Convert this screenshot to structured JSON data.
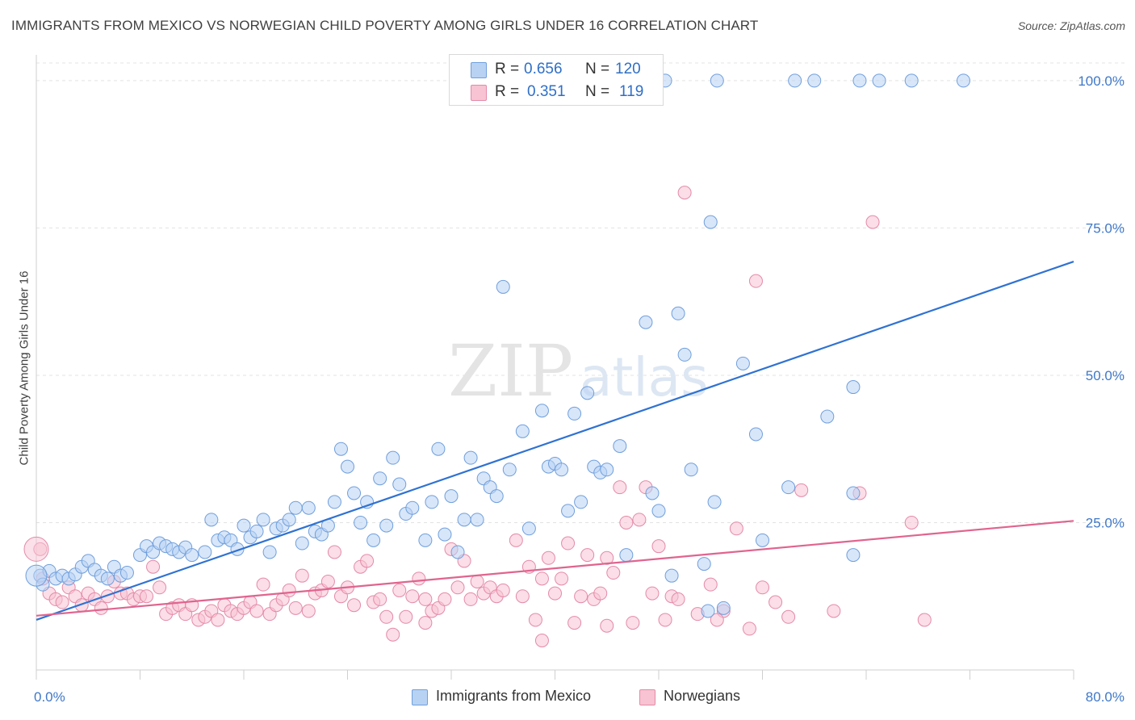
{
  "header": {
    "title": "IMMIGRANTS FROM MEXICO VS NORWEGIAN CHILD POVERTY AMONG GIRLS UNDER 16 CORRELATION CHART",
    "source": "Source: ZipAtlas.com"
  },
  "watermark": {
    "zip": "ZIP",
    "atlas": "atlas"
  },
  "legend_top": {
    "rows": [
      {
        "r_label": "R =",
        "r_value": "0.656",
        "n_label": "N =",
        "n_value": "120"
      },
      {
        "r_label": "R =",
        "r_value": "0.351",
        "n_label": "N =",
        "n_value": "119"
      }
    ]
  },
  "legend_bottom": {
    "items": [
      {
        "label": "Immigrants from Mexico"
      },
      {
        "label": "Norwegians"
      }
    ]
  },
  "colors": {
    "blue_fill": "#b8d2f4",
    "blue_stroke": "#6f9fdc",
    "blue_line": "#2f72d2",
    "pink_fill": "#f8c3d3",
    "pink_stroke": "#e48aa8",
    "pink_line": "#e0648f",
    "tick_text": "#3f78c8",
    "grid": "#e3e3e3"
  },
  "chart_data": {
    "type": "scatter",
    "title": "IMMIGRANTS FROM MEXICO VS NORWEGIAN CHILD POVERTY AMONG GIRLS UNDER 16 CORRELATION CHART",
    "xlabel": "",
    "ylabel": "Child Poverty Among Girls Under 16",
    "xlim": [
      0,
      80
    ],
    "ylim": [
      0,
      103
    ],
    "x_tick_labels": [
      "0.0%",
      "80.0%"
    ],
    "y_ticks": [
      25,
      50,
      75,
      100
    ],
    "y_tick_labels": [
      "25.0%",
      "50.0%",
      "75.0%",
      "100.0%"
    ],
    "grid": true,
    "legend_position": "top-center",
    "series": [
      {
        "name": "Immigrants from Mexico",
        "color": "#6f9fdc",
        "trend": {
          "x": [
            0,
            80
          ],
          "y": [
            8.5,
            69.3
          ]
        },
        "points": [
          [
            0.3,
            16
          ],
          [
            0.5,
            14.5
          ],
          [
            1.0,
            16.8
          ],
          [
            1.5,
            15.5
          ],
          [
            2.0,
            16
          ],
          [
            2.5,
            15.5
          ],
          [
            3.0,
            16.2
          ],
          [
            3.5,
            17.5
          ],
          [
            4.0,
            18.5
          ],
          [
            4.5,
            17
          ],
          [
            5.0,
            16
          ],
          [
            5.5,
            15.5
          ],
          [
            6.0,
            17.5
          ],
          [
            6.5,
            16
          ],
          [
            7.0,
            16.5
          ],
          [
            8.0,
            19.5
          ],
          [
            8.5,
            21
          ],
          [
            9.0,
            20
          ],
          [
            9.5,
            21.5
          ],
          [
            10.0,
            21
          ],
          [
            10.5,
            20.5
          ],
          [
            11.0,
            20
          ],
          [
            11.5,
            20.8
          ],
          [
            12.0,
            19.5
          ],
          [
            13.0,
            20
          ],
          [
            13.5,
            25.5
          ],
          [
            14.0,
            22
          ],
          [
            14.5,
            22.5
          ],
          [
            15.0,
            22
          ],
          [
            15.5,
            20.5
          ],
          [
            16.0,
            24.5
          ],
          [
            16.5,
            22.5
          ],
          [
            17.0,
            23.5
          ],
          [
            17.5,
            25.5
          ],
          [
            18.0,
            20
          ],
          [
            18.5,
            24
          ],
          [
            19.0,
            24.5
          ],
          [
            19.5,
            25.5
          ],
          [
            20.0,
            27.5
          ],
          [
            20.5,
            21.5
          ],
          [
            21.0,
            27.5
          ],
          [
            21.5,
            23.5
          ],
          [
            22.0,
            23
          ],
          [
            22.5,
            24.5
          ],
          [
            23.0,
            28.5
          ],
          [
            23.5,
            37.5
          ],
          [
            24.0,
            34.5
          ],
          [
            24.5,
            30
          ],
          [
            25.0,
            25
          ],
          [
            25.5,
            28.5
          ],
          [
            26.0,
            22
          ],
          [
            26.5,
            32.5
          ],
          [
            27.0,
            24.5
          ],
          [
            27.5,
            36
          ],
          [
            28.0,
            31.5
          ],
          [
            28.5,
            26.5
          ],
          [
            29.0,
            27.5
          ],
          [
            30.0,
            22
          ],
          [
            30.5,
            28.5
          ],
          [
            31.0,
            37.5
          ],
          [
            31.5,
            23
          ],
          [
            32.0,
            29.5
          ],
          [
            32.5,
            20
          ],
          [
            33.0,
            25.5
          ],
          [
            33.5,
            36
          ],
          [
            34.0,
            25.5
          ],
          [
            34.5,
            32.5
          ],
          [
            35.0,
            31
          ],
          [
            35.5,
            29.5
          ],
          [
            36.0,
            65
          ],
          [
            36.5,
            34
          ],
          [
            37.5,
            40.5
          ],
          [
            38.0,
            24
          ],
          [
            39.0,
            44
          ],
          [
            39.5,
            34.5
          ],
          [
            40.0,
            35
          ],
          [
            40.5,
            34
          ],
          [
            41.0,
            27
          ],
          [
            41.5,
            43.5
          ],
          [
            42.0,
            28.5
          ],
          [
            42.5,
            47
          ],
          [
            43.0,
            34.5
          ],
          [
            43.5,
            33.5
          ],
          [
            44.0,
            34
          ],
          [
            45.0,
            38
          ],
          [
            45.5,
            19.5
          ],
          [
            47.0,
            59
          ],
          [
            47.5,
            30
          ],
          [
            48.0,
            27
          ],
          [
            49.0,
            16
          ],
          [
            49.5,
            60.5
          ],
          [
            50.0,
            53.5
          ],
          [
            50.5,
            34
          ],
          [
            51.5,
            18
          ],
          [
            51.8,
            10
          ],
          [
            52.0,
            76
          ],
          [
            52.3,
            28.5
          ],
          [
            52.5,
            100
          ],
          [
            53.0,
            10.5
          ],
          [
            54.5,
            52
          ],
          [
            55.5,
            40
          ],
          [
            56.0,
            22
          ],
          [
            58.0,
            31
          ],
          [
            58.5,
            100
          ],
          [
            60.0,
            100
          ],
          [
            61.0,
            43
          ],
          [
            63.0,
            48
          ],
          [
            63.0,
            30
          ],
          [
            63.5,
            100
          ],
          [
            63.0,
            19.5
          ],
          [
            67.5,
            100
          ],
          [
            71.5,
            100
          ],
          [
            48.5,
            100
          ],
          [
            65.0,
            100
          ]
        ]
      },
      {
        "name": "Norwegians",
        "color": "#e48aa8",
        "trend": {
          "x": [
            0,
            80
          ],
          "y": [
            9.2,
            25.3
          ]
        },
        "points": [
          [
            0.3,
            20.5
          ],
          [
            0.5,
            15.5
          ],
          [
            1.0,
            13
          ],
          [
            1.5,
            12
          ],
          [
            2.0,
            11.5
          ],
          [
            2.5,
            14
          ],
          [
            3.0,
            12.5
          ],
          [
            3.5,
            11
          ],
          [
            4.0,
            13
          ],
          [
            4.5,
            12
          ],
          [
            5.0,
            10.5
          ],
          [
            5.5,
            12.5
          ],
          [
            6.0,
            15
          ],
          [
            6.5,
            13
          ],
          [
            7.0,
            13
          ],
          [
            7.5,
            12
          ],
          [
            8.0,
            12.5
          ],
          [
            8.5,
            12.5
          ],
          [
            9.0,
            17.5
          ],
          [
            9.5,
            14
          ],
          [
            10.0,
            9.5
          ],
          [
            10.5,
            10.5
          ],
          [
            11.0,
            11
          ],
          [
            11.5,
            9.5
          ],
          [
            12.0,
            11
          ],
          [
            12.5,
            8.5
          ],
          [
            13.0,
            9
          ],
          [
            13.5,
            10
          ],
          [
            14.0,
            8.5
          ],
          [
            14.5,
            11
          ],
          [
            15.0,
            10
          ],
          [
            15.5,
            9.5
          ],
          [
            16.0,
            10.5
          ],
          [
            16.5,
            11.5
          ],
          [
            17.0,
            10
          ],
          [
            17.5,
            14.5
          ],
          [
            18.0,
            9.5
          ],
          [
            18.5,
            11
          ],
          [
            19.0,
            12
          ],
          [
            19.5,
            13.5
          ],
          [
            20.0,
            10.5
          ],
          [
            20.5,
            16
          ],
          [
            21.0,
            10
          ],
          [
            21.5,
            13
          ],
          [
            22.0,
            13.5
          ],
          [
            22.5,
            15
          ],
          [
            23.0,
            20
          ],
          [
            23.5,
            12.5
          ],
          [
            24.0,
            14
          ],
          [
            24.5,
            11
          ],
          [
            25.0,
            17.5
          ],
          [
            25.5,
            18.5
          ],
          [
            26.0,
            11.5
          ],
          [
            26.5,
            12
          ],
          [
            27.0,
            9
          ],
          [
            27.5,
            6
          ],
          [
            28.0,
            13.5
          ],
          [
            28.5,
            9
          ],
          [
            29.0,
            12.5
          ],
          [
            29.5,
            15.5
          ],
          [
            30.0,
            12
          ],
          [
            30.5,
            10
          ],
          [
            31.0,
            10.5
          ],
          [
            31.5,
            12
          ],
          [
            32.0,
            20.5
          ],
          [
            32.5,
            14
          ],
          [
            33.0,
            18.5
          ],
          [
            33.5,
            12
          ],
          [
            34.0,
            15
          ],
          [
            34.5,
            13
          ],
          [
            35.0,
            14
          ],
          [
            35.5,
            12.5
          ],
          [
            36.0,
            13.5
          ],
          [
            37.0,
            22
          ],
          [
            37.5,
            12.5
          ],
          [
            38.0,
            17.5
          ],
          [
            38.5,
            8.5
          ],
          [
            39.0,
            15.5
          ],
          [
            39.5,
            19
          ],
          [
            40.0,
            13
          ],
          [
            40.5,
            15.5
          ],
          [
            41.0,
            21.5
          ],
          [
            41.5,
            8
          ],
          [
            42.0,
            12.5
          ],
          [
            42.5,
            19.5
          ],
          [
            43.0,
            12
          ],
          [
            43.5,
            13
          ],
          [
            44.0,
            19
          ],
          [
            44.5,
            16.5
          ],
          [
            45.0,
            31
          ],
          [
            45.5,
            25
          ],
          [
            46.0,
            8
          ],
          [
            46.5,
            25.5
          ],
          [
            47.0,
            31
          ],
          [
            47.5,
            13
          ],
          [
            48.0,
            21
          ],
          [
            48.5,
            8.5
          ],
          [
            49.0,
            12.5
          ],
          [
            49.5,
            12
          ],
          [
            50.0,
            81
          ],
          [
            51.0,
            9.5
          ],
          [
            52.0,
            14.5
          ],
          [
            53.0,
            10
          ],
          [
            54.0,
            24
          ],
          [
            55.5,
            66
          ],
          [
            56.0,
            14
          ],
          [
            57.0,
            11.5
          ],
          [
            58.0,
            9
          ],
          [
            59.0,
            30.5
          ],
          [
            61.5,
            10
          ],
          [
            63.5,
            30
          ],
          [
            64.5,
            76
          ],
          [
            67.5,
            25
          ],
          [
            68.5,
            8.5
          ],
          [
            55.0,
            7
          ],
          [
            52.5,
            8.5
          ],
          [
            39.0,
            5
          ],
          [
            30.0,
            8
          ],
          [
            44.0,
            7.5
          ]
        ]
      }
    ]
  }
}
